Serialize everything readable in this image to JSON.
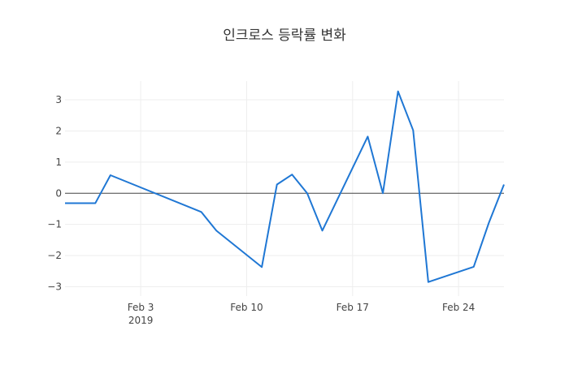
{
  "chart_data": {
    "type": "line",
    "title": "인크로스 등락률 변화",
    "xlabel": "",
    "ylabel": "",
    "x_tick_labels": [
      "Feb 3",
      "Feb 10",
      "Feb 17",
      "Feb 24"
    ],
    "x_tick_dates": [
      "2019-02-03",
      "2019-02-10",
      "2019-02-17",
      "2019-02-24"
    ],
    "x_year_label": "2019",
    "y_ticks": [
      -3,
      -2,
      -1,
      0,
      1,
      2,
      3
    ],
    "y_tick_labels": [
      "−3",
      "−2",
      "−1",
      "0",
      "1",
      "2",
      "3"
    ],
    "xlim": [
      "2019-01-29",
      "2019-02-27"
    ],
    "ylim": [
      -3.3,
      3.6
    ],
    "grid": true,
    "zero_line": true,
    "colors": {
      "line": "#1f77d4",
      "grid": "#eeeeee",
      "zero": "#444444"
    },
    "series": [
      {
        "x": [
          "2019-01-29",
          "2019-01-31",
          "2019-02-01",
          "2019-02-07",
          "2019-02-08",
          "2019-02-11",
          "2019-02-12",
          "2019-02-13",
          "2019-02-14",
          "2019-02-15",
          "2019-02-18",
          "2019-02-19",
          "2019-02-20",
          "2019-02-21",
          "2019-02-22",
          "2019-02-25",
          "2019-02-26",
          "2019-02-27"
        ],
        "y": [
          -0.32,
          -0.32,
          0.58,
          -0.6,
          -1.2,
          -2.37,
          0.28,
          0.6,
          0.0,
          -1.2,
          1.82,
          0.0,
          3.27,
          2.02,
          -2.85,
          -2.36,
          -0.95,
          0.28
        ]
      }
    ]
  }
}
